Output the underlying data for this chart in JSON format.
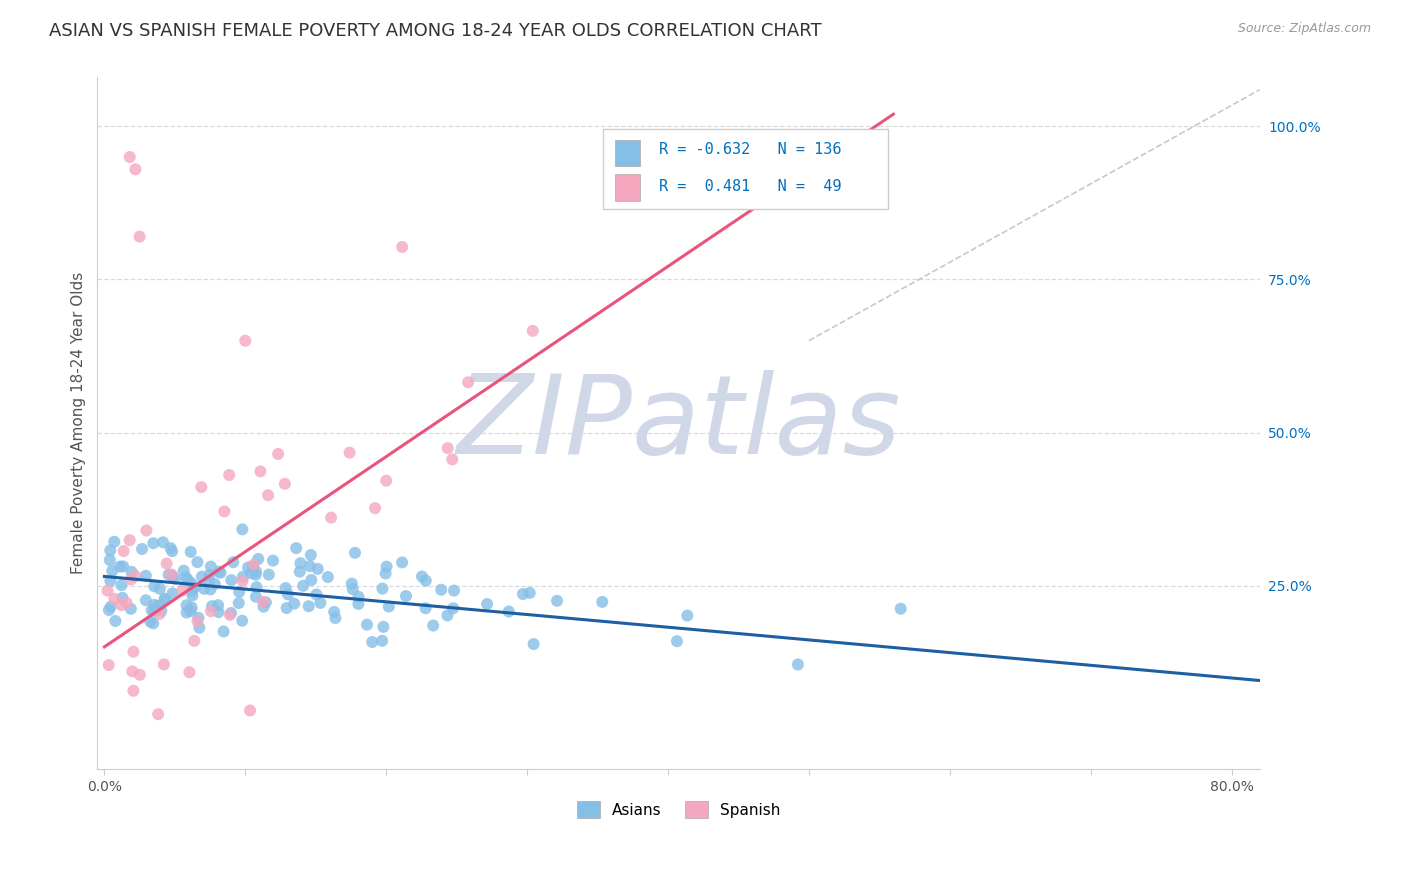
{
  "title": "ASIAN VS SPANISH FEMALE POVERTY AMONG 18-24 YEAR OLDS CORRELATION CHART",
  "source": "Source: ZipAtlas.com",
  "ylabel": "Female Poverty Among 18-24 Year Olds",
  "xlim": [
    -0.005,
    0.82
  ],
  "ylim": [
    -0.05,
    1.08
  ],
  "xtick_positions": [
    0.0,
    0.1,
    0.2,
    0.3,
    0.4,
    0.5,
    0.6,
    0.7,
    0.8
  ],
  "xticklabels": [
    "0.0%",
    "",
    "",
    "",
    "",
    "",
    "",
    "",
    "80.0%"
  ],
  "ytick_pos": [
    0.25,
    0.5,
    0.75,
    1.0
  ],
  "ytick_labels": [
    "25.0%",
    "50.0%",
    "75.0%",
    "100.0%"
  ],
  "asian_color": "#85bfe8",
  "spanish_color": "#f4a7bf",
  "asian_line_color": "#1e5fa3",
  "spanish_line_color": "#e8547a",
  "diag_line_color": "#c8c8c8",
  "R_asian": -0.632,
  "N_asian": 136,
  "R_spanish": 0.481,
  "N_spanish": 49,
  "legend_R_color": "#0070c0",
  "background_color": "#ffffff",
  "grid_color": "#d8d8d8",
  "title_fontsize": 13,
  "axis_label_fontsize": 11,
  "tick_fontsize": 10,
  "watermark_text": "ZIPatlas",
  "watermark_color": "#d0d8e8",
  "legend_text_asian": "R = -0.632   N = 136",
  "legend_text_spanish": "R =  0.481   N =  49"
}
